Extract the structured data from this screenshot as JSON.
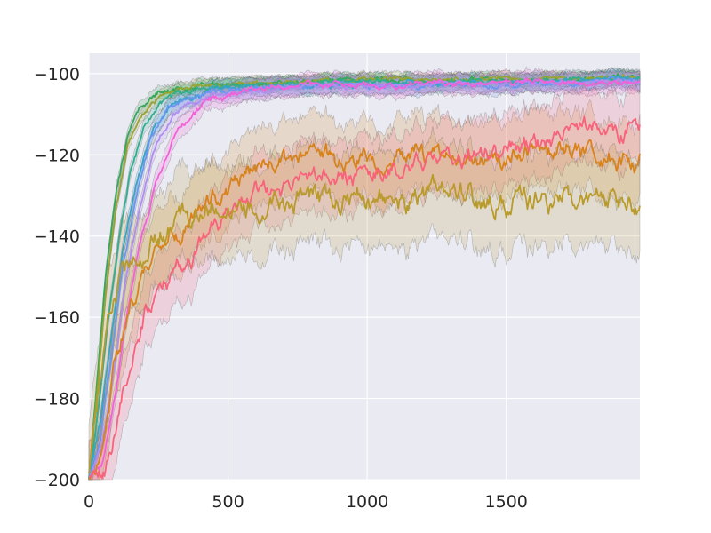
{
  "chart_data": {
    "type": "line",
    "title": "",
    "xlabel": "",
    "ylabel": "",
    "xlim": [
      0,
      1980
    ],
    "ylim": [
      -200,
      -95
    ],
    "xticks": [
      0,
      500,
      1000,
      1500
    ],
    "yticks": [
      -200,
      -180,
      -160,
      -140,
      -120,
      -100
    ],
    "xtick_labels": [
      "0",
      "500",
      "1000",
      "1500"
    ],
    "ytick_labels": [
      "−200",
      "−180",
      "−160",
      "−140",
      "−120",
      "−100"
    ],
    "grid": true,
    "legend": "none",
    "background_color": "#eaeaf2",
    "series": [
      {
        "color": "#39a758",
        "band": 1.5,
        "points": [
          [
            0,
            -200
          ],
          [
            30,
            -175
          ],
          [
            60,
            -150
          ],
          [
            100,
            -128
          ],
          [
            140,
            -115
          ],
          [
            180,
            -109
          ],
          [
            250,
            -104
          ],
          [
            400,
            -103
          ],
          [
            700,
            -102
          ],
          [
            1000,
            -101.5
          ],
          [
            1500,
            -101.5
          ],
          [
            1980,
            -101
          ]
        ]
      },
      {
        "color": "#97a433",
        "band": 1.5,
        "points": [
          [
            0,
            -200
          ],
          [
            30,
            -178
          ],
          [
            60,
            -154
          ],
          [
            100,
            -132
          ],
          [
            140,
            -118
          ],
          [
            190,
            -110
          ],
          [
            260,
            -105
          ],
          [
            400,
            -103
          ],
          [
            700,
            -102
          ],
          [
            1000,
            -101.5
          ],
          [
            1500,
            -101.5
          ],
          [
            1980,
            -101
          ]
        ]
      },
      {
        "color": "#34ad8e",
        "band": 1.8,
        "points": [
          [
            0,
            -200
          ],
          [
            35,
            -182
          ],
          [
            70,
            -160
          ],
          [
            110,
            -140
          ],
          [
            150,
            -124
          ],
          [
            200,
            -113
          ],
          [
            280,
            -106
          ],
          [
            400,
            -103.5
          ],
          [
            700,
            -102.5
          ],
          [
            1000,
            -102
          ],
          [
            1500,
            -102
          ],
          [
            1980,
            -101.5
          ]
        ]
      },
      {
        "color": "#37a5c8",
        "band": 2.0,
        "points": [
          [
            0,
            -200
          ],
          [
            40,
            -186
          ],
          [
            80,
            -165
          ],
          [
            120,
            -144
          ],
          [
            170,
            -127
          ],
          [
            230,
            -114
          ],
          [
            300,
            -107
          ],
          [
            450,
            -104
          ],
          [
            700,
            -103
          ],
          [
            1000,
            -102.5
          ],
          [
            1500,
            -102
          ],
          [
            1980,
            -101.5
          ]
        ]
      },
      {
        "color": "#6b96f0",
        "band": 2.0,
        "points": [
          [
            0,
            -200
          ],
          [
            40,
            -190
          ],
          [
            80,
            -170
          ],
          [
            120,
            -148
          ],
          [
            170,
            -130
          ],
          [
            220,
            -116
          ],
          [
            290,
            -108
          ],
          [
            450,
            -104
          ],
          [
            700,
            -103
          ],
          [
            1000,
            -103
          ],
          [
            1500,
            -102.5
          ],
          [
            1980,
            -102
          ]
        ]
      },
      {
        "color": "#b08df0",
        "band": 2.0,
        "points": [
          [
            0,
            -200
          ],
          [
            45,
            -192
          ],
          [
            90,
            -174
          ],
          [
            130,
            -152
          ],
          [
            180,
            -134
          ],
          [
            230,
            -119
          ],
          [
            300,
            -110
          ],
          [
            450,
            -105
          ],
          [
            700,
            -103.5
          ],
          [
            1000,
            -103
          ],
          [
            1500,
            -102.5
          ],
          [
            1980,
            -102
          ]
        ]
      },
      {
        "color": "#f361d9",
        "band": 2.5,
        "points": [
          [
            0,
            -200
          ],
          [
            50,
            -196
          ],
          [
            90,
            -182
          ],
          [
            130,
            -162
          ],
          [
            180,
            -143
          ],
          [
            240,
            -127
          ],
          [
            320,
            -114
          ],
          [
            420,
            -107
          ],
          [
            550,
            -104
          ],
          [
            800,
            -103
          ],
          [
            1200,
            -102.5
          ],
          [
            1500,
            -102
          ],
          [
            1980,
            -102
          ]
        ]
      },
      {
        "color": "#d7831d",
        "band": 9.0,
        "points": [
          [
            0,
            -200
          ],
          [
            60,
            -190
          ],
          [
            100,
            -170
          ],
          [
            150,
            -156
          ],
          [
            200,
            -147
          ],
          [
            280,
            -140
          ],
          [
            380,
            -134
          ],
          [
            500,
            -128
          ],
          [
            600,
            -123
          ],
          [
            800,
            -121
          ],
          [
            1000,
            -121
          ],
          [
            1200,
            -121
          ],
          [
            1400,
            -120
          ],
          [
            1600,
            -120
          ],
          [
            1800,
            -120
          ],
          [
            1980,
            -121
          ]
        ]
      },
      {
        "color": "#f7637b",
        "band": 8.5,
        "points": [
          [
            0,
            -200
          ],
          [
            60,
            -197
          ],
          [
            100,
            -185
          ],
          [
            150,
            -170
          ],
          [
            200,
            -160
          ],
          [
            300,
            -150
          ],
          [
            400,
            -142
          ],
          [
            500,
            -135
          ],
          [
            600,
            -130
          ],
          [
            800,
            -127
          ],
          [
            1000,
            -125
          ],
          [
            1200,
            -122
          ],
          [
            1400,
            -120
          ],
          [
            1600,
            -118
          ],
          [
            1800,
            -115
          ],
          [
            1980,
            -114
          ]
        ]
      },
      {
        "color": "#b99b2d",
        "band": 11.0,
        "points": [
          [
            0,
            -200
          ],
          [
            40,
            -175
          ],
          [
            80,
            -158
          ],
          [
            120,
            -149
          ],
          [
            170,
            -144
          ],
          [
            230,
            -140
          ],
          [
            300,
            -137
          ],
          [
            400,
            -134
          ],
          [
            500,
            -132
          ],
          [
            600,
            -131
          ],
          [
            800,
            -131
          ],
          [
            1000,
            -131
          ],
          [
            1200,
            -131.5
          ],
          [
            1400,
            -132
          ],
          [
            1600,
            -131.5
          ],
          [
            1800,
            -131
          ],
          [
            1980,
            -132
          ]
        ]
      }
    ]
  }
}
